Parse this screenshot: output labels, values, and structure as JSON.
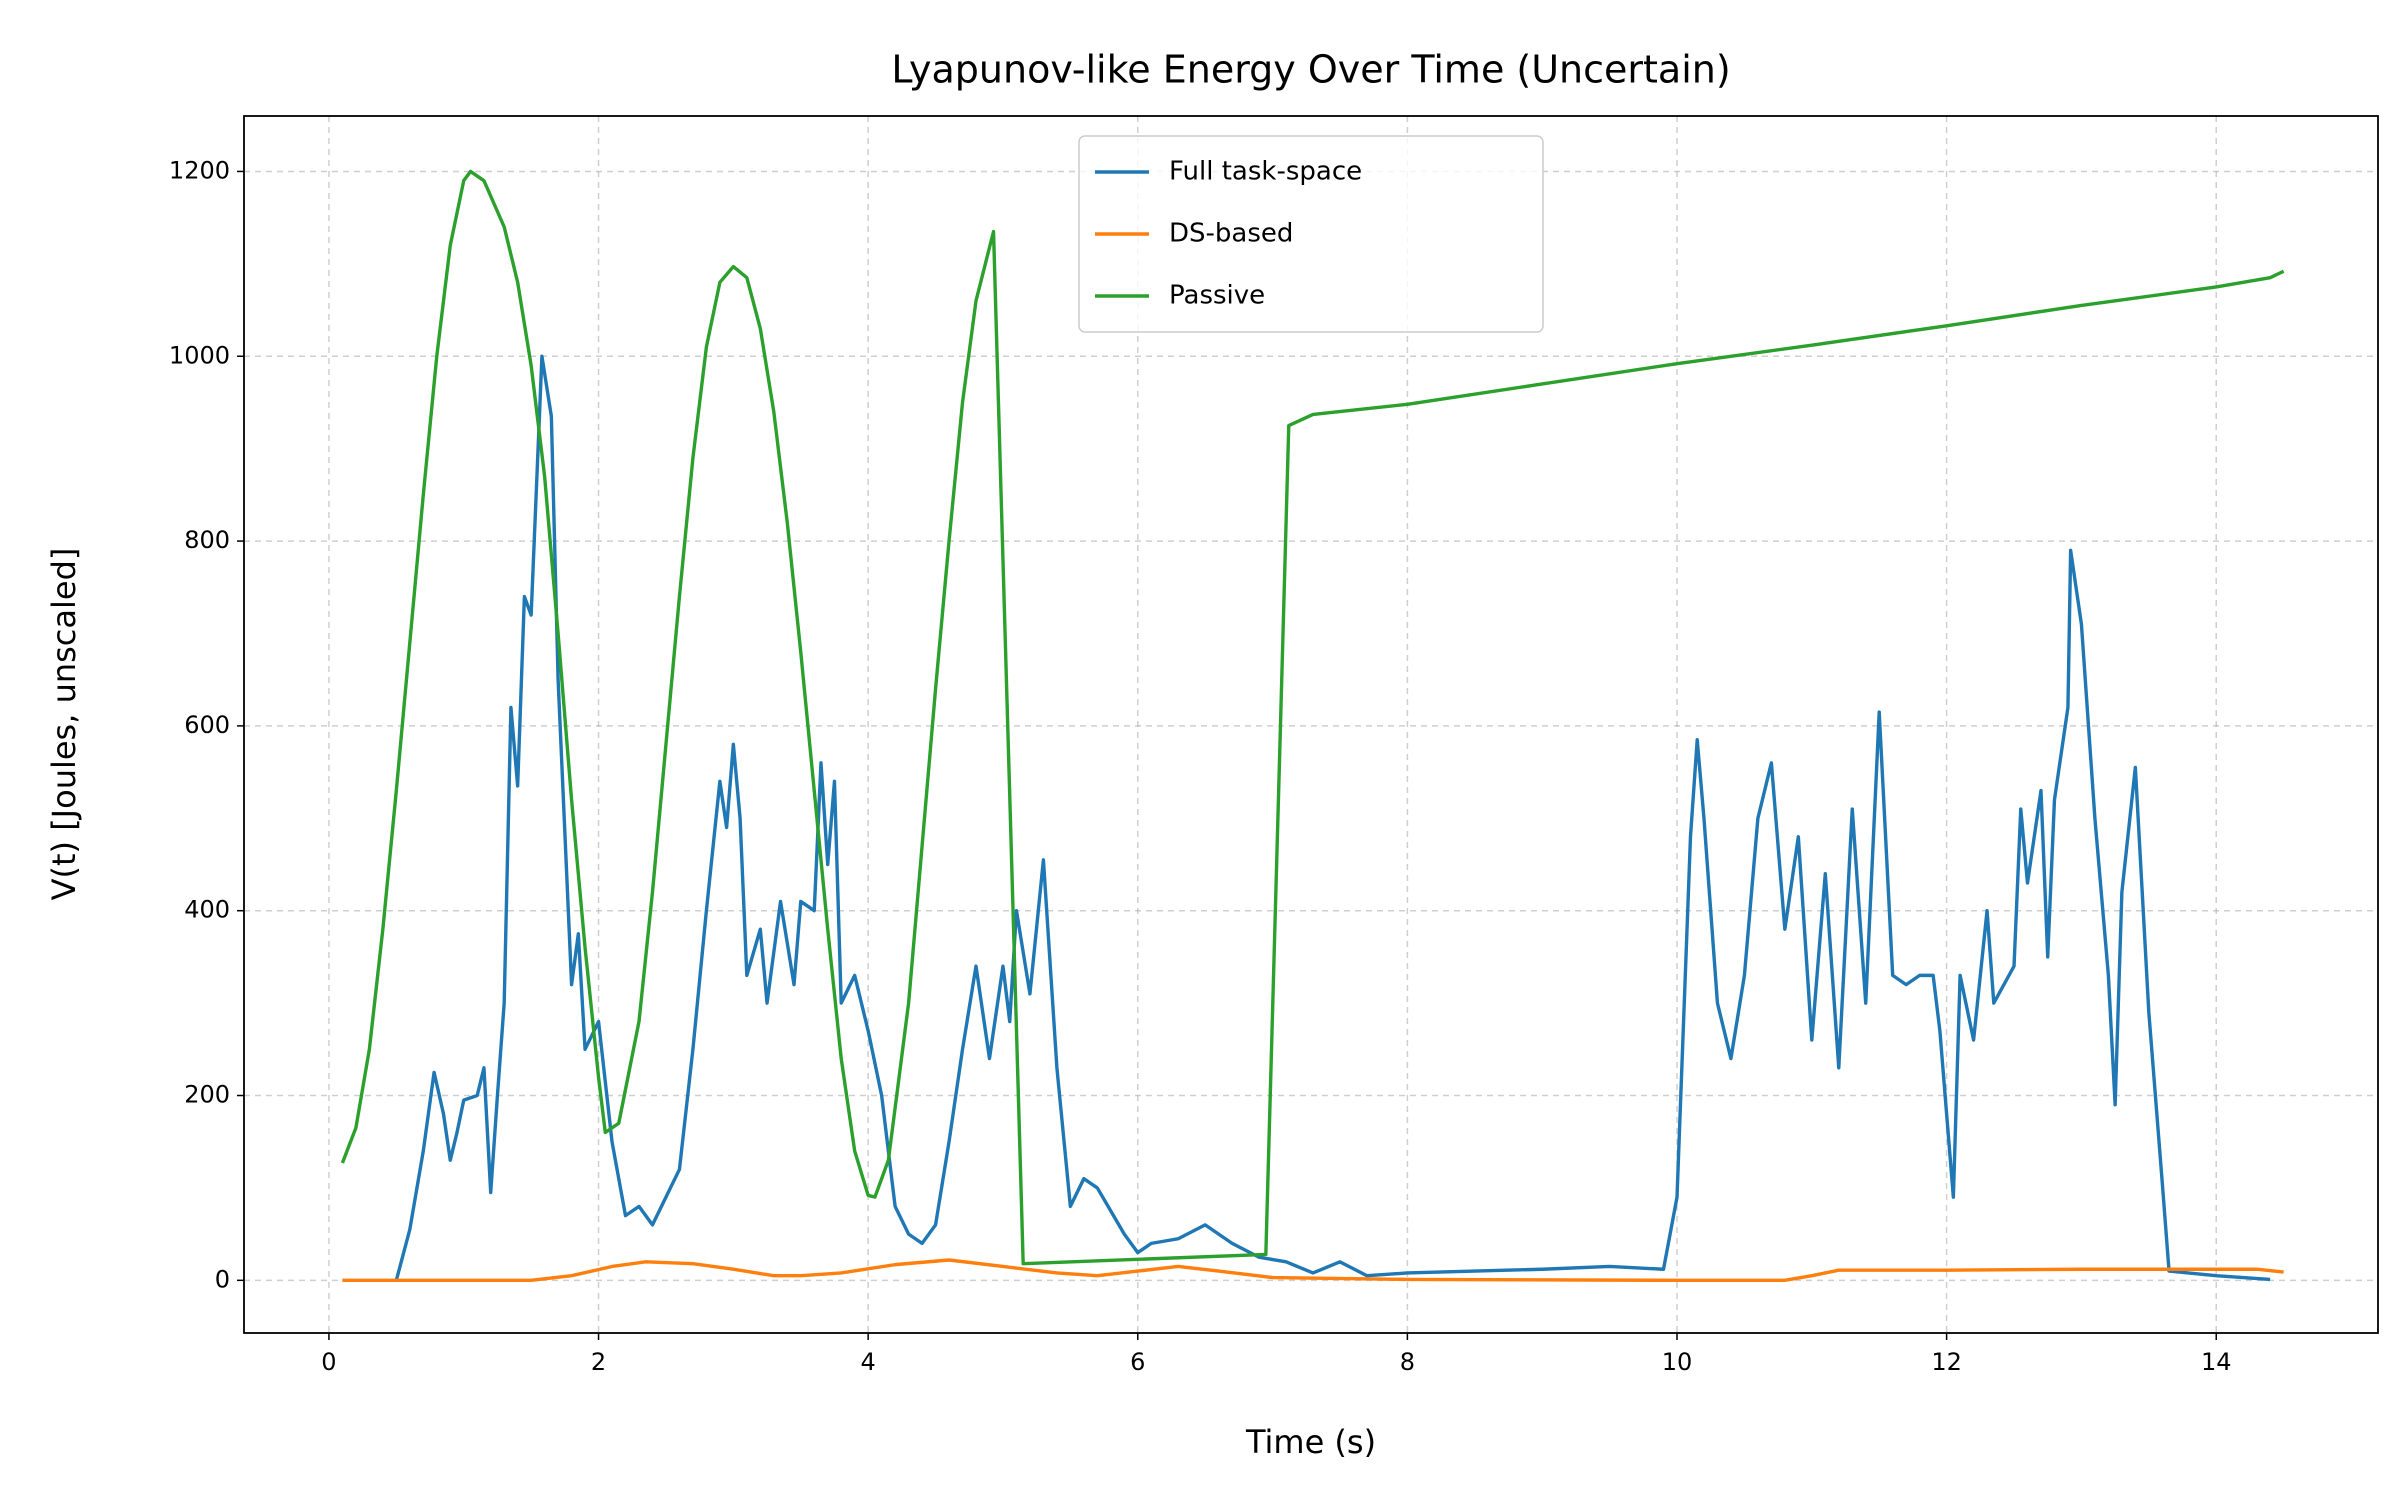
{
  "chart_data": {
    "type": "line",
    "title": "Lyapunov-like Energy Over Time (Uncertain)",
    "x_label": "Time (s)",
    "y_label": "V(t) [Joules, unscaled]",
    "xlim": [
      -0.63,
      15.2
    ],
    "ylim": [
      -57,
      1260
    ],
    "xticks": [
      0,
      2,
      4,
      6,
      8,
      10,
      12,
      14
    ],
    "yticks": [
      0,
      200,
      400,
      600,
      800,
      1000,
      1200
    ],
    "grid": true,
    "legend": "upper center",
    "series": [
      {
        "name": "Full task-space",
        "color": "#1f77b4",
        "x": [
          0.5,
          0.6,
          0.7,
          0.78,
          0.85,
          0.9,
          0.95,
          1.0,
          1.1,
          1.15,
          1.2,
          1.25,
          1.3,
          1.35,
          1.4,
          1.45,
          1.5,
          1.58,
          1.65,
          1.7,
          1.8,
          1.85,
          1.9,
          2.0,
          2.1,
          2.2,
          2.3,
          2.4,
          2.5,
          2.6,
          2.7,
          2.8,
          2.9,
          2.95,
          3.0,
          3.05,
          3.1,
          3.2,
          3.25,
          3.35,
          3.45,
          3.5,
          3.6,
          3.65,
          3.7,
          3.75,
          3.8,
          3.9,
          4.0,
          4.1,
          4.2,
          4.3,
          4.4,
          4.5,
          4.6,
          4.7,
          4.8,
          4.9,
          5.0,
          5.05,
          5.1,
          5.2,
          5.3,
          5.4,
          5.5,
          5.6,
          5.7,
          5.8,
          5.9,
          6.0,
          6.1,
          6.3,
          6.5,
          6.7,
          6.9,
          7.1,
          7.3,
          7.5,
          7.7,
          8.0,
          8.5,
          9.0,
          9.5,
          9.9,
          10.0,
          10.1,
          10.15,
          10.2,
          10.3,
          10.4,
          10.5,
          10.6,
          10.7,
          10.8,
          10.9,
          11.0,
          11.1,
          11.2,
          11.3,
          11.4,
          11.5,
          11.6,
          11.7,
          11.8,
          11.9,
          11.95,
          12.05,
          12.1,
          12.2,
          12.3,
          12.35,
          12.5,
          12.55,
          12.6,
          12.7,
          12.75,
          12.8,
          12.9,
          12.92,
          13.0,
          13.1,
          13.2,
          13.25,
          13.3,
          13.4,
          13.5,
          13.6,
          13.65,
          14.0,
          14.4
        ],
        "values": [
          0,
          55,
          140,
          225,
          180,
          130,
          160,
          195,
          200,
          230,
          95,
          200,
          300,
          620,
          535,
          740,
          720,
          1000,
          935,
          650,
          320,
          375,
          250,
          280,
          150,
          70,
          80,
          60,
          90,
          120,
          250,
          400,
          540,
          490,
          580,
          500,
          330,
          380,
          300,
          410,
          320,
          410,
          400,
          560,
          450,
          540,
          300,
          330,
          270,
          200,
          80,
          50,
          40,
          60,
          150,
          250,
          340,
          240,
          340,
          280,
          400,
          310,
          455,
          230,
          80,
          110,
          100,
          75,
          50,
          30,
          40,
          45,
          60,
          40,
          25,
          20,
          8,
          20,
          5,
          8,
          10,
          12,
          15,
          12,
          90,
          480,
          585,
          500,
          300,
          240,
          330,
          500,
          560,
          380,
          480,
          260,
          440,
          230,
          510,
          300,
          615,
          330,
          320,
          330,
          330,
          270,
          90,
          330,
          260,
          400,
          300,
          340,
          510,
          430,
          530,
          350,
          520,
          620,
          790,
          710,
          500,
          330,
          190,
          420,
          555,
          290,
          105,
          10,
          5,
          1
        ]
      },
      {
        "name": "DS-based",
        "color": "#ff7f0e",
        "x": [
          0.1,
          1.5,
          1.8,
          2.1,
          2.35,
          2.7,
          3.0,
          3.3,
          3.5,
          3.8,
          4.2,
          4.6,
          5.0,
          5.4,
          5.7,
          6.0,
          6.3,
          6.6,
          7.0,
          8.0,
          10.0,
          10.8,
          11.0,
          11.2,
          12.0,
          13.0,
          14.0,
          14.3,
          14.5
        ],
        "values": [
          0,
          0,
          5,
          15,
          20,
          18,
          12,
          5,
          5,
          8,
          17,
          22,
          15,
          8,
          5,
          10,
          15,
          10,
          3,
          1,
          0,
          0,
          5,
          11,
          11,
          12,
          12,
          12,
          9
        ]
      },
      {
        "name": "Passive",
        "color": "#2ca02c",
        "x": [
          0.1,
          0.2,
          0.3,
          0.4,
          0.5,
          0.6,
          0.7,
          0.8,
          0.9,
          1.0,
          1.05,
          1.15,
          1.3,
          1.4,
          1.5,
          1.6,
          1.7,
          1.8,
          1.9,
          2.0,
          2.05,
          2.15,
          2.3,
          2.4,
          2.5,
          2.6,
          2.7,
          2.8,
          2.9,
          3.0,
          3.1,
          3.2,
          3.3,
          3.4,
          3.5,
          3.6,
          3.7,
          3.8,
          3.9,
          4.0,
          4.05,
          4.15,
          4.3,
          4.4,
          4.5,
          4.6,
          4.7,
          4.8,
          4.93,
          5.15,
          6.95,
          7.12,
          7.3,
          8.0,
          9.0,
          10.0,
          11.0,
          12.0,
          13.0,
          14.0,
          14.4,
          14.5
        ],
        "values": [
          127,
          165,
          250,
          380,
          530,
          690,
          850,
          1000,
          1120,
          1190,
          1200,
          1190,
          1140,
          1080,
          990,
          870,
          700,
          520,
          360,
          220,
          160,
          170,
          280,
          420,
          580,
          740,
          890,
          1010,
          1080,
          1097,
          1085,
          1030,
          940,
          820,
          680,
          530,
          380,
          240,
          140,
          92,
          90,
          130,
          300,
          470,
          640,
          800,
          950,
          1060,
          1135,
          18,
          28,
          925,
          937,
          948,
          970,
          992,
          1012,
          1033,
          1055,
          1075,
          1085,
          1092
        ]
      }
    ]
  }
}
